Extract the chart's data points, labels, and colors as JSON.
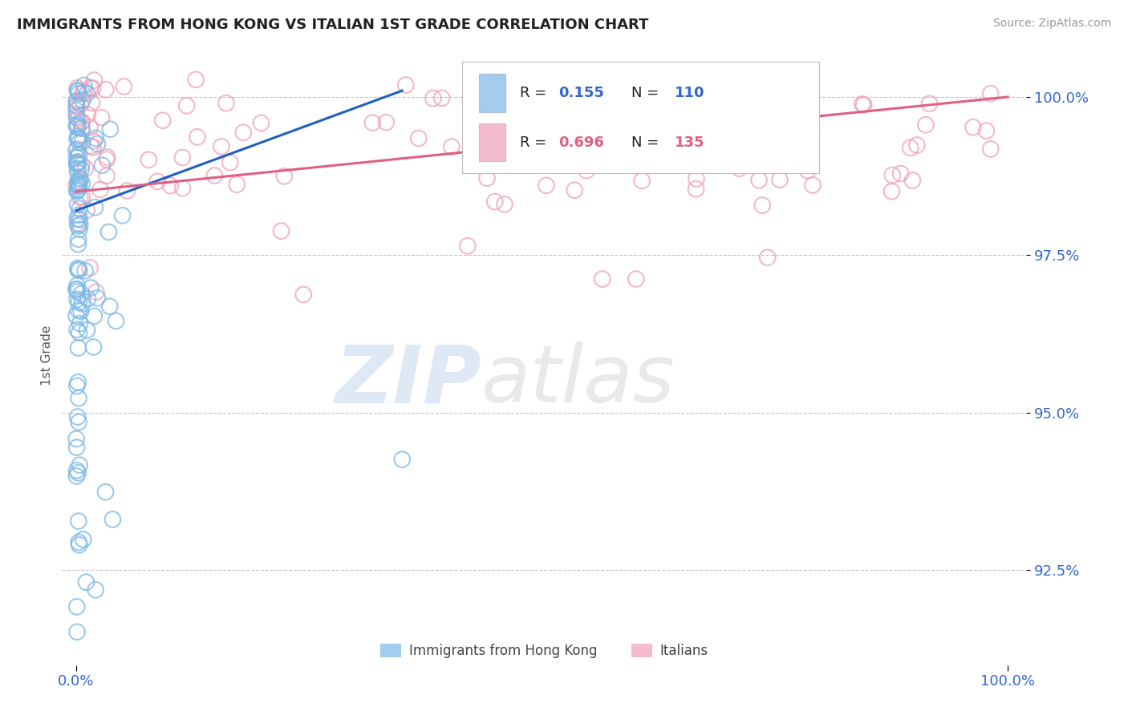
{
  "title": "IMMIGRANTS FROM HONG KONG VS ITALIAN 1ST GRADE CORRELATION CHART",
  "source_text": "Source: ZipAtlas.com",
  "ylabel": "1st Grade",
  "watermark_zip": "ZIP",
  "watermark_atlas": "atlas",
  "xlim": [
    -1.5,
    102
  ],
  "ylim": [
    91.0,
    100.8
  ],
  "yticks": [
    92.5,
    95.0,
    97.5,
    100.0
  ],
  "xticks": [
    0.0,
    100.0
  ],
  "xticklabels": [
    "0.0%",
    "100.0%"
  ],
  "yticklabels": [
    "92.5%",
    "95.0%",
    "97.5%",
    "100.0%"
  ],
  "blue_color": "#7ab8e8",
  "pink_color": "#f0a0b8",
  "blue_line_color": "#2060c0",
  "pink_line_color": "#e06080",
  "blue_R": "0.155",
  "blue_N": "110",
  "pink_R": "0.696",
  "pink_N": "135",
  "legend_label_blue": "Immigrants from Hong Kong",
  "legend_label_pink": "Italians",
  "blue_trendline": [
    [
      0,
      98.2
    ],
    [
      35,
      100.1
    ]
  ],
  "pink_trendline": [
    [
      0,
      98.5
    ],
    [
      100,
      100.0
    ]
  ]
}
